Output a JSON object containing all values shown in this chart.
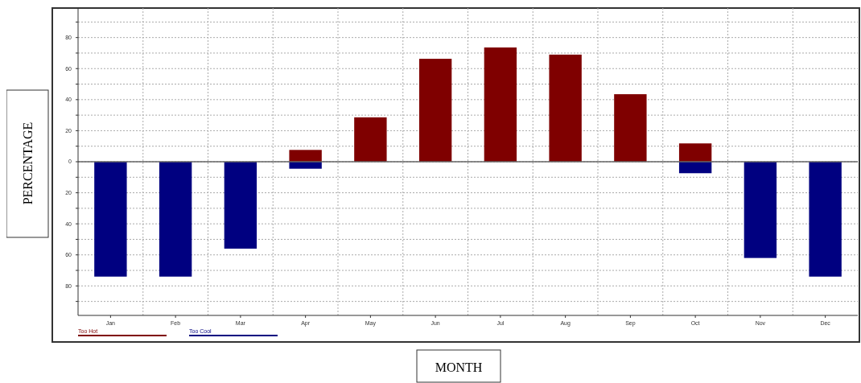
{
  "chart_data": {
    "type": "bar",
    "xlabel": "MONTH",
    "ylabel": "PERCENTAGE",
    "categories": [
      "Jan",
      "Feb",
      "Mar",
      "Apr",
      "May",
      "Jun",
      "Jul",
      "Aug",
      "Sep",
      "Oct",
      "Nov",
      "Dec"
    ],
    "series": [
      {
        "name": "Too Hot",
        "color": "#7f0000",
        "values": [
          null,
          null,
          null,
          7.6,
          28.6,
          66.3,
          73.6,
          69,
          43.5,
          11.8,
          null,
          null
        ]
      },
      {
        "name": "Too Cool",
        "color": "#000080",
        "values": [
          -74,
          -74,
          -56,
          -4.5,
          null,
          null,
          null,
          null,
          null,
          -7.4,
          -62,
          -74
        ]
      }
    ],
    "ylim": [
      -99,
      99
    ],
    "yticks": [
      {
        "value": -90,
        "label": null
      },
      {
        "value": -80,
        "label": "80"
      },
      {
        "value": -70,
        "label": null
      },
      {
        "value": -60,
        "label": "60"
      },
      {
        "value": -50,
        "label": null
      },
      {
        "value": -40,
        "label": "40"
      },
      {
        "value": -30,
        "label": null
      },
      {
        "value": -20,
        "label": "20"
      },
      {
        "value": -10,
        "label": null
      },
      0,
      {
        "value": 10,
        "label": null
      },
      20,
      {
        "value": 30,
        "label": null
      },
      40,
      {
        "value": 50,
        "label": null
      },
      60,
      {
        "value": 70,
        "label": null
      },
      80,
      {
        "value": 90,
        "label": null
      }
    ],
    "grid": true,
    "legend": "bottom left"
  }
}
